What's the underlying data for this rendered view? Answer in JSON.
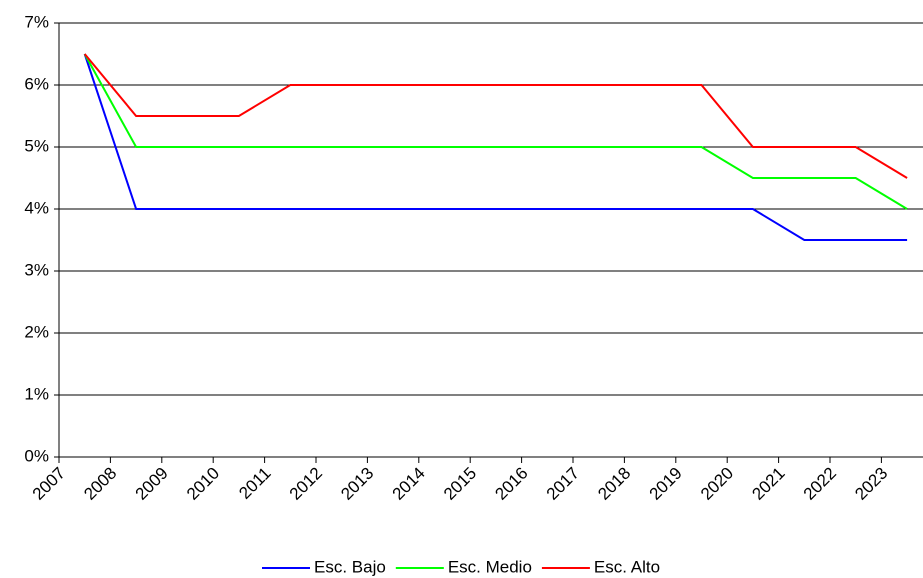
{
  "chart_data": {
    "type": "line",
    "categories": [
      "2007",
      "2008",
      "2009",
      "2010",
      "2011",
      "2012",
      "2013",
      "2014",
      "2015",
      "2016",
      "2017",
      "2018",
      "2019",
      "2020",
      "2021",
      "2022",
      "2023"
    ],
    "series": [
      {
        "name": "Esc. Bajo",
        "color": "#0000ff",
        "values": [
          6.5,
          4,
          4,
          4,
          4,
          4,
          4,
          4,
          4,
          4,
          4,
          4,
          4,
          4,
          3.5,
          3.5,
          3.5
        ]
      },
      {
        "name": "Esc. Medio",
        "color": "#00ff00",
        "values": [
          6.5,
          5,
          5,
          5,
          5,
          5,
          5,
          5,
          5,
          5,
          5,
          5,
          5,
          4.5,
          4.5,
          4.5,
          4
        ]
      },
      {
        "name": "Esc. Alto",
        "color": "#ff0000",
        "values": [
          6.5,
          5.5,
          5.5,
          5.5,
          6,
          6,
          6,
          6,
          6,
          6,
          6,
          6,
          6,
          5,
          5,
          5,
          4.5
        ]
      }
    ],
    "ylim": [
      0,
      7
    ],
    "yticks": [
      {
        "value": 0,
        "label": "0%"
      },
      {
        "value": 1,
        "label": "1%"
      },
      {
        "value": 2,
        "label": "2%"
      },
      {
        "value": 3,
        "label": "3%"
      },
      {
        "value": 4,
        "label": "4%"
      },
      {
        "value": 5,
        "label": "5%"
      },
      {
        "value": 6,
        "label": "6%"
      },
      {
        "value": 7,
        "label": "7%"
      }
    ],
    "grid": true,
    "legend": "bottom"
  }
}
